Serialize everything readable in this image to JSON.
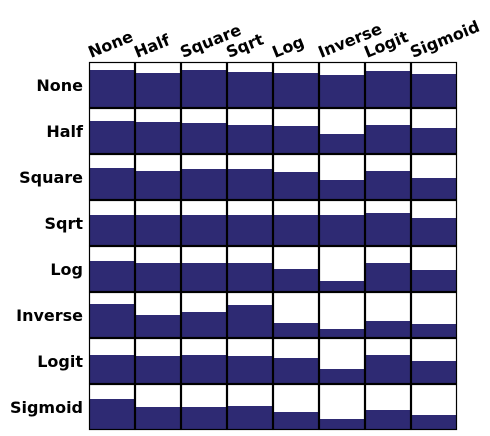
{
  "chart_data": {
    "type": "heatmap",
    "row_labels": [
      "None",
      "Half",
      "Square",
      "Sqrt",
      "Log",
      "Inverse",
      "Logit",
      "Sigmoid"
    ],
    "column_labels": [
      "None",
      "Half",
      "Square",
      "Sqrt",
      "Log",
      "Inverse",
      "Logit",
      "Sigmoid"
    ],
    "value_range": [
      0,
      1
    ],
    "values": [
      [
        0.83,
        0.75,
        0.83,
        0.78,
        0.75,
        0.71,
        0.81,
        0.73
      ],
      [
        0.71,
        0.69,
        0.67,
        0.62,
        0.6,
        0.44,
        0.62,
        0.56
      ],
      [
        0.69,
        0.64,
        0.67,
        0.67,
        0.6,
        0.44,
        0.64,
        0.47
      ],
      [
        0.67,
        0.67,
        0.67,
        0.67,
        0.67,
        0.67,
        0.71,
        0.6
      ],
      [
        0.67,
        0.64,
        0.64,
        0.64,
        0.51,
        0.24,
        0.64,
        0.47
      ],
      [
        0.73,
        0.49,
        0.56,
        0.71,
        0.33,
        0.2,
        0.36,
        0.31
      ],
      [
        0.64,
        0.6,
        0.62,
        0.6,
        0.56,
        0.33,
        0.64,
        0.51
      ],
      [
        0.67,
        0.51,
        0.51,
        0.53,
        0.4,
        0.24,
        0.44,
        0.33
      ]
    ],
    "bar_color": "#2e2a73",
    "grid": true
  }
}
